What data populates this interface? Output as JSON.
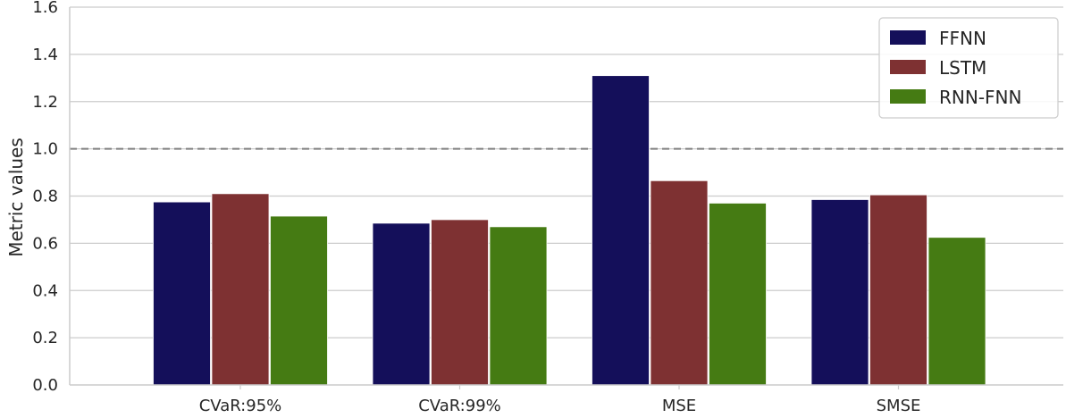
{
  "chart_data": {
    "type": "bar",
    "categories": [
      "CVaR:95%",
      "CVaR:99%",
      "MSE",
      "SMSE"
    ],
    "series": [
      {
        "name": "FFNN",
        "values": [
          0.775,
          0.685,
          1.31,
          0.785
        ]
      },
      {
        "name": "LSTM",
        "values": [
          0.81,
          0.7,
          0.865,
          0.805
        ]
      },
      {
        "name": "RNN-FNN",
        "values": [
          0.715,
          0.67,
          0.77,
          0.625
        ]
      }
    ],
    "colors": {
      "FFNN": "#140f5a",
      "LSTM": "#7e3132",
      "RNN-FNN": "#457b13"
    },
    "ylabel": "Metric values",
    "xlabel": "",
    "ylim": [
      0,
      1.6
    ],
    "yticks": [
      "0.0",
      "0.2",
      "0.4",
      "0.6",
      "0.8",
      "1.0",
      "1.2",
      "1.4",
      "1.6"
    ],
    "reference_line": {
      "value": 1.0,
      "style": "dashed",
      "color": "#808080"
    },
    "grid": "horizontal",
    "legend_position": "top-right"
  }
}
